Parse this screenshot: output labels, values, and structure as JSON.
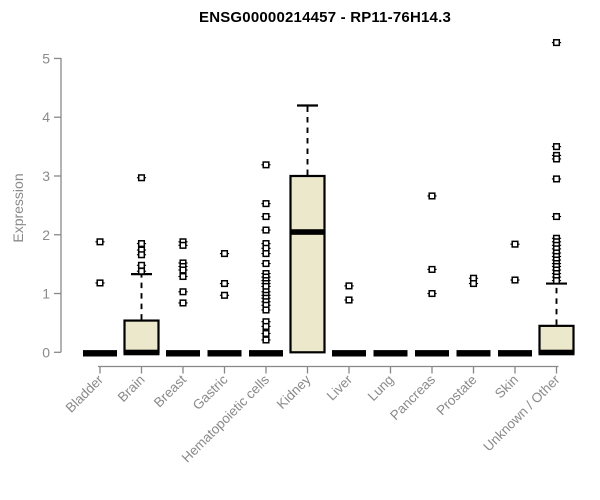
{
  "chart_data": {
    "type": "boxplot",
    "title": "ENSG00000214457 - RP11-76H14.3",
    "ylabel": "Expression",
    "xlabel": "",
    "ylim": [
      0,
      5
    ],
    "yticks": [
      0,
      1,
      2,
      3,
      4,
      5
    ],
    "grid": false,
    "legend": "none",
    "categories": [
      "Bladder",
      "Brain",
      "Breast",
      "Gastric",
      "Hematopoietic cells",
      "Kidney",
      "Liver",
      "Lung",
      "Pancreas",
      "Prostate",
      "Skin",
      "Unknown / Other"
    ],
    "series": [
      {
        "category": "Bladder",
        "q1": 0,
        "median": 0,
        "q3": 0,
        "whisker_low": 0,
        "whisker_high": 0,
        "outliers": [
          1.88,
          1.18
        ]
      },
      {
        "category": "Brain",
        "q1": 0,
        "median": 0,
        "q3": 0.54,
        "whisker_low": 0,
        "whisker_high": 1.33,
        "outliers": [
          2.97,
          1.85,
          1.74,
          1.66,
          1.48,
          1.38
        ]
      },
      {
        "category": "Breast",
        "q1": 0,
        "median": 0,
        "q3": 0,
        "whisker_low": 0,
        "whisker_high": 0,
        "outliers": [
          1.88,
          1.82,
          1.52,
          1.46,
          1.4,
          1.29,
          1.03,
          0.84
        ]
      },
      {
        "category": "Gastric",
        "q1": 0,
        "median": 0,
        "q3": 0,
        "whisker_low": 0,
        "whisker_high": 0,
        "outliers": [
          1.68,
          1.17,
          0.97
        ]
      },
      {
        "category": "Hematopoietic cells",
        "q1": 0,
        "median": 0,
        "q3": 0,
        "whisker_low": 0,
        "whisker_high": 0,
        "outliers": [
          3.19,
          2.53,
          2.31,
          2.08,
          1.85,
          1.77,
          1.68,
          1.51,
          1.34,
          1.28,
          1.22,
          1.17,
          1.12,
          1.03,
          0.97,
          0.92,
          0.86,
          0.8,
          0.72,
          0.52,
          0.44,
          0.32,
          0.21
        ]
      },
      {
        "category": "Kidney",
        "q1": 0,
        "median": 2.05,
        "q3": 3.0,
        "whisker_low": 0,
        "whisker_high": 4.2,
        "outliers": []
      },
      {
        "category": "Liver",
        "q1": 0,
        "median": 0,
        "q3": 0,
        "whisker_low": 0,
        "whisker_high": 0,
        "outliers": [
          1.13,
          0.89
        ]
      },
      {
        "category": "Lung",
        "q1": 0,
        "median": 0,
        "q3": 0,
        "whisker_low": 0,
        "whisker_high": 0,
        "outliers": []
      },
      {
        "category": "Pancreas",
        "q1": 0,
        "median": 0,
        "q3": 0,
        "whisker_low": 0,
        "whisker_high": 0,
        "outliers": [
          2.66,
          1.41,
          1.0
        ]
      },
      {
        "category": "Prostate",
        "q1": 0,
        "median": 0,
        "q3": 0,
        "whisker_low": 0,
        "whisker_high": 0,
        "outliers": [
          1.26,
          1.17
        ]
      },
      {
        "category": "Skin",
        "q1": 0,
        "median": 0,
        "q3": 0,
        "whisker_low": 0,
        "whisker_high": 0,
        "outliers": [
          1.84,
          1.23
        ]
      },
      {
        "category": "Unknown / Other",
        "q1": 0,
        "median": 0,
        "q3": 0.45,
        "whisker_low": 0,
        "whisker_high": 1.17,
        "outliers": [
          5.27,
          3.5,
          3.35,
          3.29,
          2.95,
          2.31,
          1.94,
          1.88,
          1.82,
          1.76,
          1.69,
          1.63,
          1.57,
          1.51,
          1.46,
          1.4,
          1.34,
          1.28,
          1.22
        ]
      }
    ],
    "colors": {
      "box_fill": "#ECE8CC",
      "box_stroke": "#000000",
      "median": "#000000",
      "outlier_stroke": "#000000",
      "outlier_fill": "#FFFFFF",
      "axis": "#888888",
      "tick_label": "#8a8a8a",
      "title": "#000000",
      "background": "#FFFFFF"
    }
  }
}
